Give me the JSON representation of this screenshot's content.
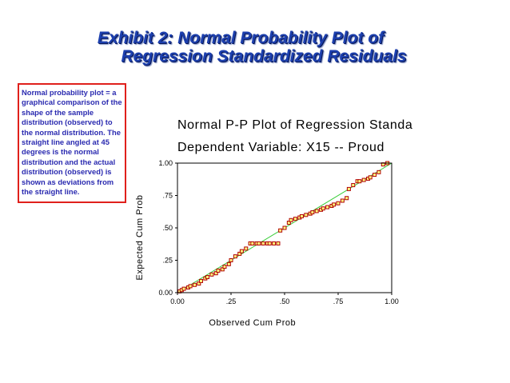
{
  "exhibit": {
    "title_line1": "Exhibit 2:  Normal Probability Plot of",
    "title_line2": "Regression Standardized Residuals"
  },
  "note": {
    "text": "Normal probability plot  = a graphical comparison of the shape of the sample distribution (observed) to the normal distribution. The straight line angled at 45 degrees is the normal distribution and the actual distribution (observed) is shown as deviations from the straight line."
  },
  "colors": {
    "title": "#1c3fae",
    "note_border": "#e0201c",
    "note_text": "#2a2ab0",
    "reference_line": "#33cc33",
    "marker": "#b00000",
    "marker_fill": "#ffff80"
  },
  "chart_data": {
    "type": "scatter",
    "title": "Normal P-P Plot of Regression Standa",
    "subtitle": "Dependent Variable: X15 -- Proud",
    "xlabel": "Observed Cum Prob",
    "ylabel": "Expected Cum Prob",
    "xlim": [
      0,
      1
    ],
    "ylim": [
      0,
      1
    ],
    "x_ticks": [
      {
        "value": 0,
        "label": "0.00"
      },
      {
        "value": 0.25,
        "label": ".25"
      },
      {
        "value": 0.5,
        "label": ".50"
      },
      {
        "value": 0.75,
        "label": ".75"
      },
      {
        "value": 1,
        "label": "1.00"
      }
    ],
    "y_ticks": [
      {
        "value": 0,
        "label": "0.00"
      },
      {
        "value": 0.25,
        "label": ".25"
      },
      {
        "value": 0.5,
        "label": ".50"
      },
      {
        "value": 0.75,
        "label": ".75"
      },
      {
        "value": 1,
        "label": "1.00"
      }
    ],
    "reference_line": {
      "from": [
        0,
        0
      ],
      "to": [
        1,
        1
      ]
    },
    "points": [
      [
        0.01,
        0.01
      ],
      [
        0.02,
        0.02
      ],
      [
        0.03,
        0.03
      ],
      [
        0.05,
        0.04
      ],
      [
        0.06,
        0.05
      ],
      [
        0.08,
        0.06
      ],
      [
        0.1,
        0.07
      ],
      [
        0.11,
        0.09
      ],
      [
        0.13,
        0.11
      ],
      [
        0.14,
        0.12
      ],
      [
        0.16,
        0.14
      ],
      [
        0.18,
        0.15
      ],
      [
        0.19,
        0.17
      ],
      [
        0.21,
        0.18
      ],
      [
        0.22,
        0.2
      ],
      [
        0.24,
        0.22
      ],
      [
        0.25,
        0.25
      ],
      [
        0.27,
        0.28
      ],
      [
        0.29,
        0.3
      ],
      [
        0.3,
        0.32
      ],
      [
        0.32,
        0.34
      ],
      [
        0.34,
        0.38
      ],
      [
        0.35,
        0.38
      ],
      [
        0.37,
        0.38
      ],
      [
        0.38,
        0.38
      ],
      [
        0.4,
        0.38
      ],
      [
        0.42,
        0.38
      ],
      [
        0.43,
        0.38
      ],
      [
        0.45,
        0.38
      ],
      [
        0.47,
        0.38
      ],
      [
        0.48,
        0.48
      ],
      [
        0.5,
        0.5
      ],
      [
        0.52,
        0.54
      ],
      [
        0.53,
        0.56
      ],
      [
        0.55,
        0.57
      ],
      [
        0.57,
        0.58
      ],
      [
        0.58,
        0.59
      ],
      [
        0.6,
        0.6
      ],
      [
        0.62,
        0.61
      ],
      [
        0.63,
        0.62
      ],
      [
        0.65,
        0.63
      ],
      [
        0.67,
        0.64
      ],
      [
        0.68,
        0.65
      ],
      [
        0.7,
        0.66
      ],
      [
        0.72,
        0.67
      ],
      [
        0.73,
        0.68
      ],
      [
        0.75,
        0.69
      ],
      [
        0.77,
        0.71
      ],
      [
        0.79,
        0.73
      ],
      [
        0.8,
        0.8
      ],
      [
        0.82,
        0.83
      ],
      [
        0.84,
        0.86
      ],
      [
        0.85,
        0.86
      ],
      [
        0.87,
        0.87
      ],
      [
        0.89,
        0.88
      ],
      [
        0.9,
        0.89
      ],
      [
        0.92,
        0.91
      ],
      [
        0.94,
        0.93
      ],
      [
        0.96,
        0.99
      ],
      [
        0.98,
        1.0
      ]
    ]
  }
}
